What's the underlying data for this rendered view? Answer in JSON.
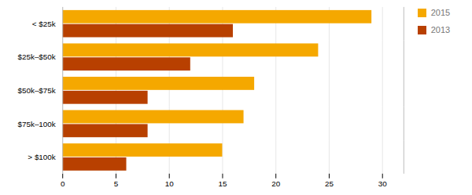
{
  "chart_data": {
    "type": "bar",
    "orientation": "horizontal",
    "categories": [
      "> $100k",
      "$75k–100k",
      "$50k–$75k",
      "$25k–$50k",
      "< $25k"
    ],
    "series": [
      {
        "name": "2015",
        "color": "#F5A800",
        "values": [
          15,
          17,
          18,
          24,
          29
        ]
      },
      {
        "name": "2013",
        "color": "#B84000",
        "values": [
          6,
          8,
          8,
          12,
          16
        ]
      }
    ],
    "xlim": [
      0,
      32
    ],
    "xticks": [
      0,
      5,
      10,
      15,
      20,
      25,
      30
    ],
    "grid": true,
    "legend": "right"
  }
}
